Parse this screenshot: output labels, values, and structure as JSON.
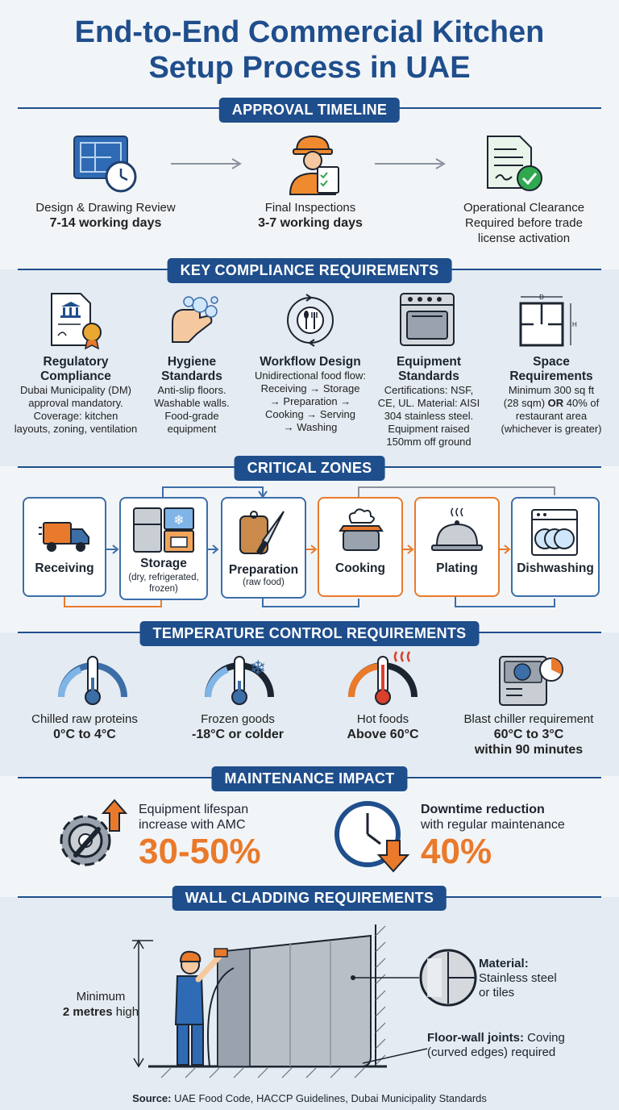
{
  "title": {
    "line1": "End-to-End Commercial Kitchen",
    "line2": "Setup Process in UAE"
  },
  "approval": {
    "heading": "APPROVAL TIMELINE",
    "steps": [
      {
        "label": "Design & Drawing Review",
        "value": "7-14 working days",
        "icon": "blueprint-clock-icon"
      },
      {
        "label": "Final Inspections",
        "value": "3-7 working days",
        "icon": "inspector-icon"
      },
      {
        "label": "Operational Clearance",
        "value_line1": "Required before trade",
        "value_line2": "license activation",
        "icon": "approved-document-icon"
      }
    ]
  },
  "compliance": {
    "heading": "KEY COMPLIANCE REQUIREMENTS",
    "items": [
      {
        "title_line1": "Regulatory",
        "title_line2": "Compliance",
        "body": [
          "Dubai Municipality (DM)",
          "approval mandatory.",
          "Coverage: kitchen",
          "layouts, zoning, ventilation"
        ]
      },
      {
        "title_line1": "Hygiene",
        "title_line2": "Standards",
        "body": [
          "Anti-slip floors.",
          "Washable walls.",
          "Food-grade",
          "equipment"
        ]
      },
      {
        "title_line1": "Workflow Design",
        "title_line2": "",
        "body": [
          "Unidirectional food flow:",
          "Receiving → Storage",
          "→ Preparation →",
          "Cooking → Serving",
          "→ Washing"
        ]
      },
      {
        "title_line1": "Equipment",
        "title_line2": "Standards",
        "body": [
          "Certifications: NSF,",
          "CE, UL. Material: AISI",
          "304 stainless steel.",
          "Equipment raised",
          "150mm off ground"
        ]
      },
      {
        "title_line1": "Space",
        "title_line2": "Requirements",
        "body": [
          "Minimum 300 sq ft",
          "(28 sqm) ",
          "OR",
          " 40% of",
          "restaurant area",
          "(whichever is greater)"
        ]
      }
    ],
    "floorplan_labels": {
      "d": "D",
      "h": "H"
    }
  },
  "zones": {
    "heading": "CRITICAL ZONES",
    "items": [
      {
        "label": "Receiving",
        "sub": ""
      },
      {
        "label": "Storage",
        "sub_line1": "(dry, refrigerated,",
        "sub_line2": "frozen)"
      },
      {
        "label": "Preparation",
        "sub_line1": "(raw food)",
        "sub_line2": ""
      },
      {
        "label": "Cooking",
        "sub": ""
      },
      {
        "label": "Plating",
        "sub": ""
      },
      {
        "label": "Dishwashing",
        "sub": ""
      }
    ]
  },
  "temperature": {
    "heading": "TEMPERATURE CONTROL REQUIREMENTS",
    "items": [
      {
        "label": "Chilled raw proteins",
        "value": "0°C to 4°C"
      },
      {
        "label": "Frozen goods",
        "value": "-18°C or colder"
      },
      {
        "label": "Hot foods",
        "value": "Above 60°C"
      },
      {
        "label": "Blast chiller requirement",
        "value_line1": "60°C to 3°C",
        "value_line2": "within 90 minutes"
      }
    ]
  },
  "maintenance": {
    "heading": "MAINTENANCE IMPACT",
    "left": {
      "line1": "Equipment lifespan",
      "line2": "increase with AMC",
      "value": "30-50%"
    },
    "right": {
      "line1": "Downtime reduction",
      "line2": "with regular maintenance",
      "value": "40%"
    }
  },
  "cladding": {
    "heading": "WALL CLADDING REQUIREMENTS",
    "height_line1": "Minimum",
    "height_line2": "2 metres",
    "height_line2b": " high",
    "material_label": "Material:",
    "material_line1": "Stainless steel",
    "material_line2": "or tiles",
    "joint_label": "Floor-wall joints:",
    "joint_line1": " Coving",
    "joint_line2": "(curved edges) required"
  },
  "source": {
    "label": "Source:",
    "text": " UAE Food Code, HACCP Guidelines, Dubai Municipality Standards"
  },
  "colors": {
    "navy": "#1f4e8c",
    "orange": "#e97a2b",
    "blue_zone": "#3c6ea8"
  }
}
